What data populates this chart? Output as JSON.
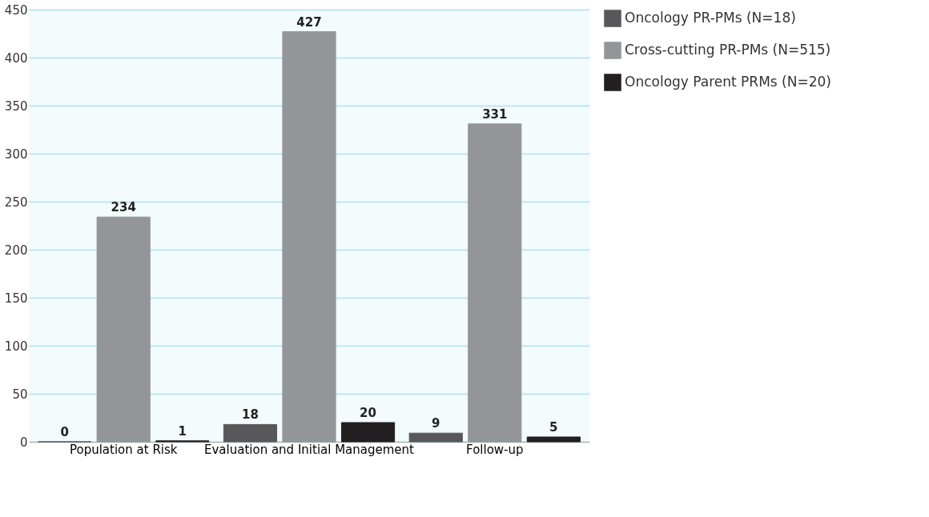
{
  "chart_data": {
    "type": "bar",
    "categories": [
      "Population at Risk",
      "Evaluation and Initial Management",
      "Follow-up"
    ],
    "series": [
      {
        "name": "Oncology PR-PMs (N=18)",
        "color": "#58585a",
        "values": [
          0,
          18,
          9
        ]
      },
      {
        "name": "Cross-cutting PR-PMs (N=515)",
        "color": "#939598",
        "values": [
          234,
          427,
          331
        ]
      },
      {
        "name": "Oncology Parent PRMs (N=20)",
        "color": "#231f20",
        "values": [
          1,
          20,
          5
        ]
      }
    ],
    "ylim": [
      0,
      450
    ],
    "yticks": [
      0,
      50,
      100,
      150,
      200,
      250,
      300,
      350,
      400,
      450
    ],
    "grid": "y",
    "legend": "right",
    "data_labels": true
  }
}
